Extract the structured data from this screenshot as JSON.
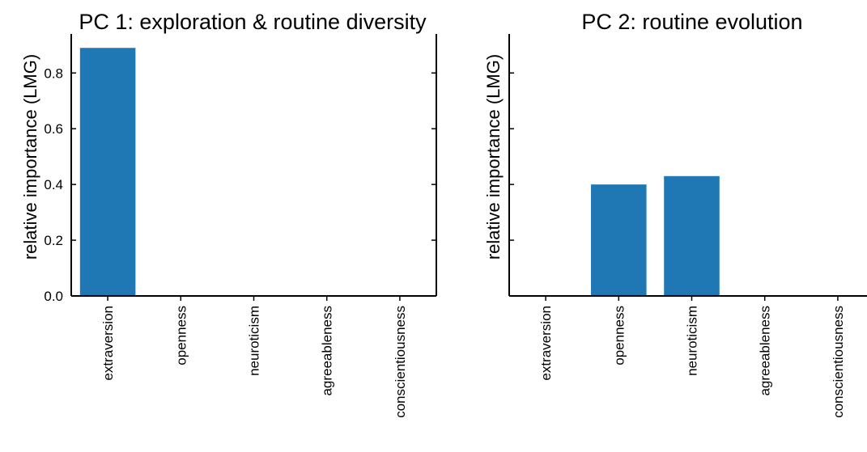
{
  "chart_data": [
    {
      "type": "bar",
      "title": "PC 1: exploration & routine diversity",
      "ylabel": "relative importance (LMG)",
      "xlabel": "",
      "categories": [
        "extraversion",
        "openness",
        "neuroticism",
        "agreeableness",
        "conscientiousness"
      ],
      "values": [
        0.89,
        0.0,
        0.0,
        0.0,
        0.0
      ],
      "ylim": [
        0,
        0.94
      ],
      "yticks": [
        0.0,
        0.2,
        0.4,
        0.6,
        0.8
      ],
      "ytick_labels": [
        "0.0",
        "0.2",
        "0.4",
        "0.6",
        "0.8"
      ],
      "color": "#1f77b4",
      "grid": false
    },
    {
      "type": "bar",
      "title": "PC 2: routine evolution",
      "ylabel": "relative importance (LMG)",
      "xlabel": "",
      "categories": [
        "extraversion",
        "openness",
        "neuroticism",
        "agreeableness",
        "conscientiousness"
      ],
      "values": [
        0.0,
        0.4,
        0.43,
        0.0,
        0.0
      ],
      "ylim": [
        0,
        0.94
      ],
      "yticks": [
        0.0,
        0.2,
        0.4,
        0.6,
        0.8
      ],
      "ytick_labels": [],
      "color": "#1f77b4",
      "grid": false
    }
  ]
}
